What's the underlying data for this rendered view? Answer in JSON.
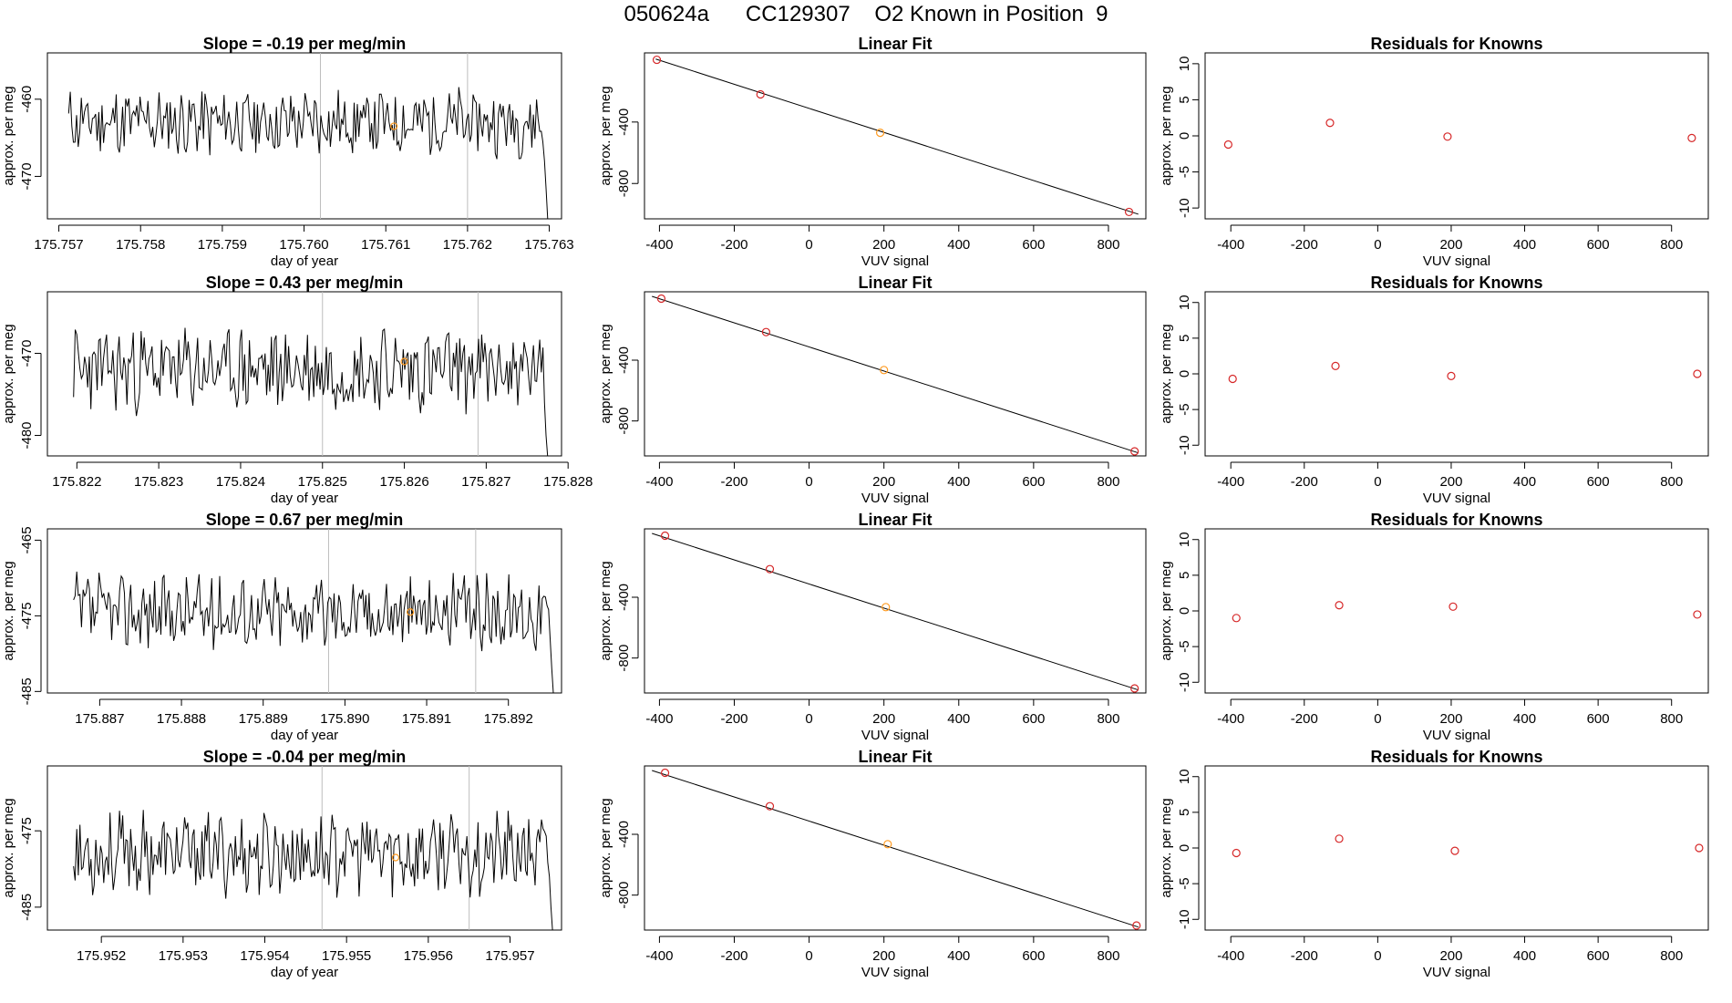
{
  "figure_title": "050624a      CC129307    O2 Known in Position  9",
  "colors": {
    "line": "#000000",
    "known_point": "#d62728",
    "sample_point": "#ff9a1f",
    "marker_line": "#bdbdbd",
    "axis": "#000000"
  },
  "chart_data": [
    {
      "row": 1,
      "timeseries": {
        "type": "line",
        "title": "Slope =  -0.19  per meg/min",
        "xlabel": "day of year",
        "ylabel": "approx. per meg",
        "xlim": [
          175.75686,
          175.76315
        ],
        "ylim": [
          -475.5,
          -454.0
        ],
        "xticks": [
          175.757,
          175.758,
          175.759,
          175.76,
          175.761,
          175.762,
          175.763
        ],
        "xtick_labels": [
          "175.757",
          "175.758",
          "175.759",
          "175.760",
          "175.761",
          "175.762",
          "175.763"
        ],
        "yticks": [
          -470,
          -460
        ],
        "ytick_labels": [
          "-470",
          "-460"
        ],
        "vlines": [
          175.7602,
          175.762
        ],
        "sample_point": {
          "x": 175.7611,
          "y": -463.5
        },
        "x_start": 175.75712,
        "x_end": 175.76298,
        "mean": -463.0,
        "amp": 2.4,
        "seed": 11,
        "tail": [
          -468.0,
          -471.5,
          -476.0
        ]
      },
      "linear_fit": {
        "type": "scatter",
        "title": "Linear Fit",
        "xlabel": "VUV signal",
        "ylabel": "approx. per meg",
        "xlim": [
          -440,
          900
        ],
        "ylim": [
          -1030,
          50
        ],
        "xticks": [
          -400,
          -200,
          0,
          200,
          400,
          600,
          800
        ],
        "xtick_labels": [
          "-400",
          "-200",
          "0",
          "200",
          "400",
          "600",
          "800"
        ],
        "yticks": [
          -800,
          -400
        ],
        "ytick_labels": [
          "-800",
          "-400"
        ],
        "fit_line": {
          "x": [
            -410,
            880
          ],
          "y": [
            10,
            -1000
          ]
        },
        "points": [
          {
            "x": -407,
            "y": 5,
            "kind": "known"
          },
          {
            "x": -130,
            "y": -220,
            "kind": "known"
          },
          {
            "x": 190,
            "y": -470,
            "kind": "sample"
          },
          {
            "x": 855,
            "y": -985,
            "kind": "known"
          }
        ]
      },
      "residuals": {
        "type": "scatter",
        "title": "Residuals for Knowns",
        "xlabel": "VUV signal",
        "ylabel": "approx. per meg",
        "xlim": [
          -470,
          900
        ],
        "ylim": [
          -11.5,
          11.5
        ],
        "xticks": [
          -400,
          -200,
          0,
          200,
          400,
          600,
          800
        ],
        "xtick_labels": [
          "-400",
          "-200",
          "0",
          "200",
          "400",
          "600",
          "800"
        ],
        "yticks": [
          -10,
          -5,
          0,
          5,
          10
        ],
        "ytick_labels": [
          "-10",
          "-5",
          "0",
          "5",
          "10"
        ],
        "points": [
          {
            "x": -407,
            "y": -1.2
          },
          {
            "x": -130,
            "y": 1.8
          },
          {
            "x": 190,
            "y": -0.1
          },
          {
            "x": 855,
            "y": -0.3
          }
        ]
      }
    },
    {
      "row": 2,
      "timeseries": {
        "type": "line",
        "title": "Slope =  0.43  per meg/min",
        "xlabel": "day of year",
        "ylabel": "approx. per meg",
        "xlim": [
          175.82164,
          175.82792
        ],
        "ylim": [
          -482.5,
          -462.5
        ],
        "xticks": [
          175.822,
          175.823,
          175.824,
          175.825,
          175.826,
          175.827,
          175.828
        ],
        "xtick_labels": [
          "175.822",
          "175.823",
          "175.824",
          "175.825",
          "175.826",
          "175.827",
          "175.828"
        ],
        "yticks": [
          -480,
          -470
        ],
        "ytick_labels": [
          "-480",
          "-470"
        ],
        "vlines": [
          175.825,
          175.8269
        ],
        "sample_point": {
          "x": 175.826,
          "y": -471.0
        },
        "x_start": 175.82196,
        "x_end": 175.82775,
        "mean": -472.0,
        "amp": 2.8,
        "seed": 23,
        "tail": [
          -476.0,
          -480.0,
          -483.0
        ]
      },
      "linear_fit": {
        "type": "scatter",
        "title": "Linear Fit",
        "xlabel": "VUV signal",
        "ylabel": "approx. per meg",
        "xlim": [
          -440,
          900
        ],
        "ylim": [
          -1030,
          50
        ],
        "xticks": [
          -400,
          -200,
          0,
          200,
          400,
          600,
          800
        ],
        "xtick_labels": [
          "-400",
          "-200",
          "0",
          "200",
          "400",
          "600",
          "800"
        ],
        "yticks": [
          -800,
          -400
        ],
        "ytick_labels": [
          "-800",
          "-400"
        ],
        "fit_line": {
          "x": [
            -420,
            880
          ],
          "y": [
            20,
            -1010
          ]
        },
        "points": [
          {
            "x": -395,
            "y": 5,
            "kind": "known"
          },
          {
            "x": -115,
            "y": -215,
            "kind": "known"
          },
          {
            "x": 200,
            "y": -465,
            "kind": "sample"
          },
          {
            "x": 870,
            "y": -1000,
            "kind": "known"
          }
        ]
      },
      "residuals": {
        "type": "scatter",
        "title": "Residuals for Knowns",
        "xlabel": "VUV signal",
        "ylabel": "approx. per meg",
        "xlim": [
          -470,
          900
        ],
        "ylim": [
          -11.5,
          11.5
        ],
        "xticks": [
          -400,
          -200,
          0,
          200,
          400,
          600,
          800
        ],
        "xtick_labels": [
          "-400",
          "-200",
          "0",
          "200",
          "400",
          "600",
          "800"
        ],
        "yticks": [
          -10,
          -5,
          0,
          5,
          10
        ],
        "ytick_labels": [
          "-10",
          "-5",
          "0",
          "5",
          "10"
        ],
        "points": [
          {
            "x": -395,
            "y": -0.7
          },
          {
            "x": -115,
            "y": 1.1
          },
          {
            "x": 200,
            "y": -0.3
          },
          {
            "x": 870,
            "y": 0.0
          }
        ]
      }
    },
    {
      "row": 3,
      "timeseries": {
        "type": "line",
        "title": "Slope =  0.67  per meg/min",
        "xlabel": "day of year",
        "ylabel": "approx. per meg",
        "xlim": [
          175.88636,
          175.89265
        ],
        "ylim": [
          -485.2,
          -463.5
        ],
        "xticks": [
          175.887,
          175.888,
          175.889,
          175.89,
          175.891,
          175.892
        ],
        "xtick_labels": [
          "175.887",
          "175.888",
          "175.889",
          "175.890",
          "175.891",
          "175.892"
        ],
        "yticks": [
          -485,
          -475,
          -465
        ],
        "ytick_labels": [
          "-485",
          "-475",
          "-465"
        ],
        "vlines": [
          175.8898,
          175.8916
        ],
        "sample_point": {
          "x": 175.8908,
          "y": -474.5
        },
        "x_start": 175.88668,
        "x_end": 175.89255,
        "mean": -474.5,
        "amp": 2.7,
        "seed": 37,
        "tail": [
          -478.0,
          -482.0,
          -486.0
        ]
      },
      "linear_fit": {
        "type": "scatter",
        "title": "Linear Fit",
        "xlabel": "VUV signal",
        "ylabel": "approx. per meg",
        "xlim": [
          -440,
          900
        ],
        "ylim": [
          -1030,
          50
        ],
        "xticks": [
          -400,
          -200,
          0,
          200,
          400,
          600,
          800
        ],
        "xtick_labels": [
          "-400",
          "-200",
          "0",
          "200",
          "400",
          "600",
          "800"
        ],
        "yticks": [
          -800,
          -400
        ],
        "ytick_labels": [
          "-800",
          "-400"
        ],
        "fit_line": {
          "x": [
            -420,
            880
          ],
          "y": [
            20,
            -1010
          ]
        },
        "points": [
          {
            "x": -385,
            "y": 5,
            "kind": "known"
          },
          {
            "x": -105,
            "y": -215,
            "kind": "known"
          },
          {
            "x": 205,
            "y": -465,
            "kind": "sample"
          },
          {
            "x": 870,
            "y": -1000,
            "kind": "known"
          }
        ]
      },
      "residuals": {
        "type": "scatter",
        "title": "Residuals for Knowns",
        "xlabel": "VUV signal",
        "ylabel": "approx. per meg",
        "xlim": [
          -470,
          900
        ],
        "ylim": [
          -11.5,
          11.5
        ],
        "xticks": [
          -400,
          -200,
          0,
          200,
          400,
          600,
          800
        ],
        "xtick_labels": [
          "-400",
          "-200",
          "0",
          "200",
          "400",
          "600",
          "800"
        ],
        "yticks": [
          -10,
          -5,
          0,
          5,
          10
        ],
        "ytick_labels": [
          "-10",
          "-5",
          "0",
          "5",
          "10"
        ],
        "points": [
          {
            "x": -385,
            "y": -1.0
          },
          {
            "x": -105,
            "y": 0.8
          },
          {
            "x": 205,
            "y": 0.6
          },
          {
            "x": 870,
            "y": -0.5
          }
        ]
      }
    },
    {
      "row": 4,
      "timeseries": {
        "type": "line",
        "title": "Slope =  -0.04  per meg/min",
        "xlabel": "day of year",
        "ylabel": "approx. per meg",
        "xlim": [
          175.95134,
          175.95763
        ],
        "ylim": [
          -488.0,
          -466.5
        ],
        "xticks": [
          175.952,
          175.953,
          175.954,
          175.955,
          175.956,
          175.957
        ],
        "xtick_labels": [
          "175.952",
          "175.953",
          "175.954",
          "175.955",
          "175.956",
          "175.957"
        ],
        "yticks": [
          -485,
          -475
        ],
        "ytick_labels": [
          "-485",
          "-475"
        ],
        "vlines": [
          175.9547,
          175.9565
        ],
        "sample_point": {
          "x": 175.9556,
          "y": -478.5
        },
        "x_start": 175.95166,
        "x_end": 175.95752,
        "mean": -478.0,
        "amp": 2.9,
        "seed": 53,
        "tail": [
          -481.0,
          -485.0,
          -488.0
        ]
      },
      "linear_fit": {
        "type": "scatter",
        "title": "Linear Fit",
        "xlabel": "VUV signal",
        "ylabel": "approx. per meg",
        "xlim": [
          -440,
          900
        ],
        "ylim": [
          -1030,
          50
        ],
        "xticks": [
          -400,
          -200,
          0,
          200,
          400,
          600,
          800
        ],
        "xtick_labels": [
          "-400",
          "-200",
          "0",
          "200",
          "400",
          "600",
          "800"
        ],
        "yticks": [
          -800,
          -400
        ],
        "ytick_labels": [
          "-800",
          "-400"
        ],
        "fit_line": {
          "x": [
            -420,
            880
          ],
          "y": [
            20,
            -1010
          ]
        },
        "points": [
          {
            "x": -385,
            "y": 5,
            "kind": "known"
          },
          {
            "x": -105,
            "y": -215,
            "kind": "known"
          },
          {
            "x": 210,
            "y": -465,
            "kind": "sample"
          },
          {
            "x": 875,
            "y": -1000,
            "kind": "known"
          }
        ]
      },
      "residuals": {
        "type": "scatter",
        "title": "Residuals for Knowns",
        "xlabel": "VUV signal",
        "ylabel": "approx. per meg",
        "xlim": [
          -470,
          900
        ],
        "ylim": [
          -11.5,
          11.5
        ],
        "xticks": [
          -400,
          -200,
          0,
          200,
          400,
          600,
          800
        ],
        "xtick_labels": [
          "-400",
          "-200",
          "0",
          "200",
          "400",
          "600",
          "800"
        ],
        "yticks": [
          -10,
          -5,
          0,
          5,
          10
        ],
        "ytick_labels": [
          "-10",
          "-5",
          "0",
          "5",
          "10"
        ],
        "points": [
          {
            "x": -385,
            "y": -0.7
          },
          {
            "x": -105,
            "y": 1.3
          },
          {
            "x": 210,
            "y": -0.4
          },
          {
            "x": 875,
            "y": 0.0
          }
        ]
      }
    }
  ]
}
